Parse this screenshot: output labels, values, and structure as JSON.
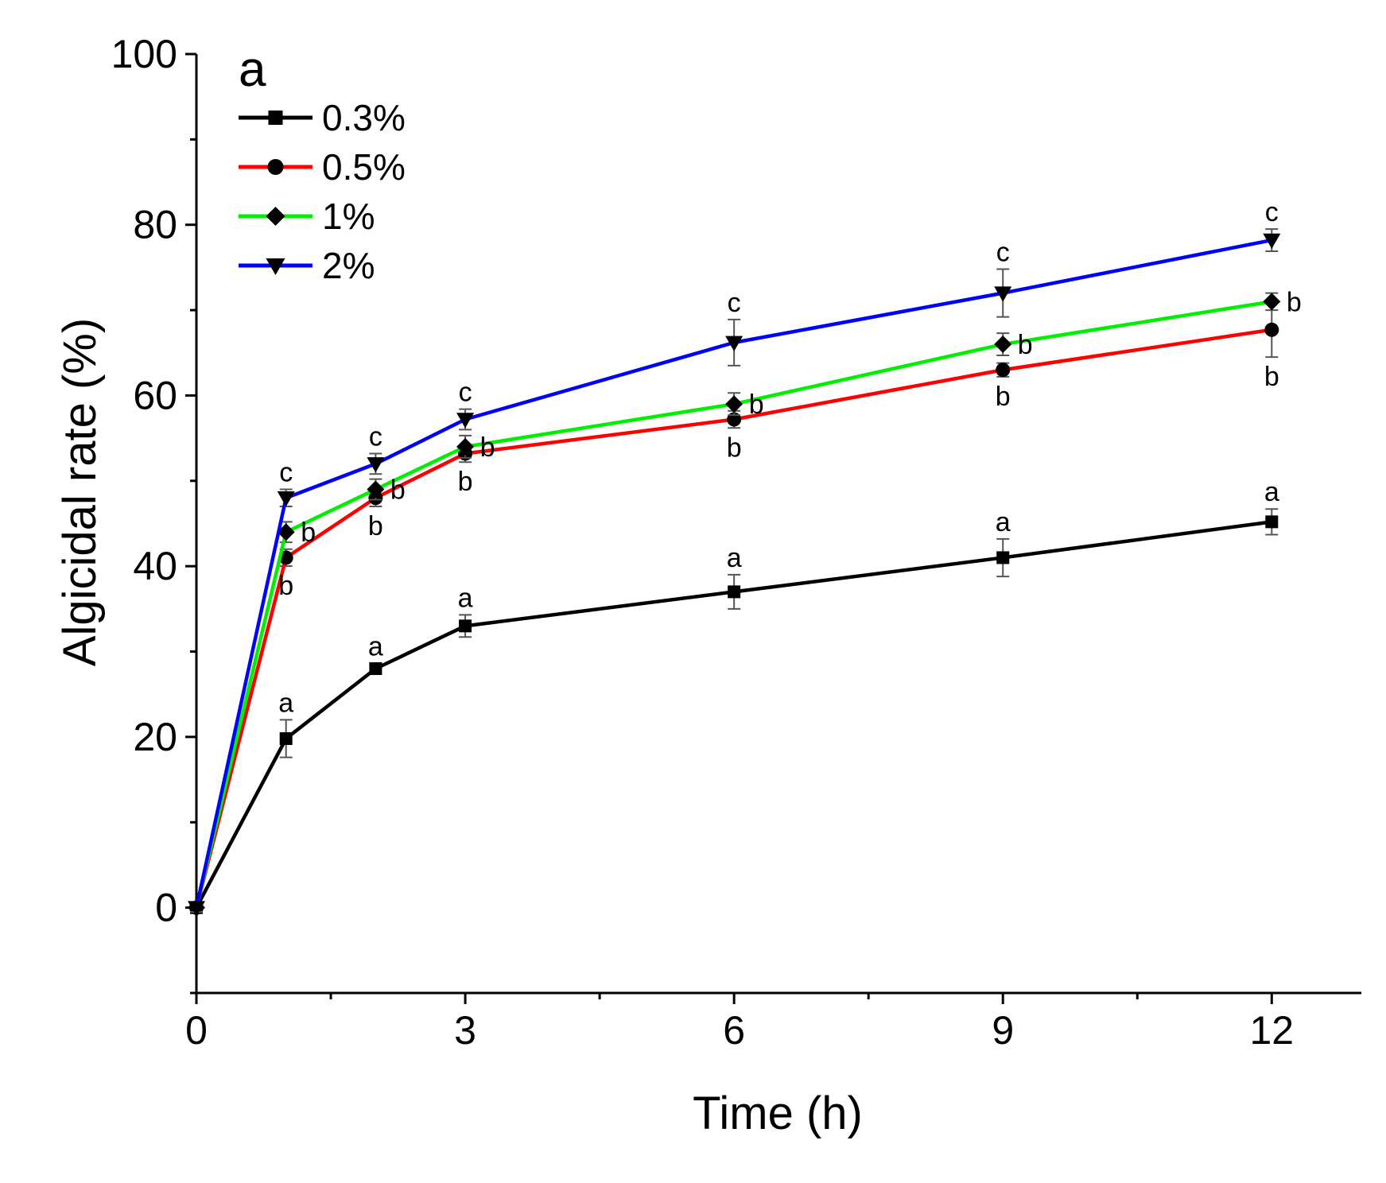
{
  "chart_data": {
    "type": "line",
    "panel_label": "a",
    "xlabel": "Time (h)",
    "ylabel": "Algicidal rate (%)",
    "xlim": [
      0,
      13
    ],
    "ylim": [
      -10,
      100
    ],
    "x_ticks": [
      0,
      3,
      6,
      9,
      12
    ],
    "x_minor_ticks": [
      1.5,
      4.5,
      7.5,
      10.5
    ],
    "y_ticks": [
      0,
      20,
      40,
      60,
      80,
      100
    ],
    "y_minor_ticks": [
      -10,
      10,
      30,
      50,
      70,
      90
    ],
    "legend_position": "top-left",
    "x": [
      0,
      1,
      2,
      3,
      6,
      9,
      12
    ],
    "series": [
      {
        "name": "0.3%",
        "color": "#000000",
        "marker": "square",
        "values": [
          0,
          19.8,
          28,
          33,
          37,
          41,
          45.2
        ],
        "errors": [
          0.5,
          2.2,
          0.6,
          1.3,
          2,
          2.2,
          1.5
        ],
        "sig": [
          "",
          "a",
          "a",
          "a",
          "a",
          "a",
          "a"
        ]
      },
      {
        "name": "0.5%",
        "color": "#ff0000",
        "marker": "circle",
        "values": [
          0,
          41,
          48,
          53.2,
          57.2,
          63,
          67.7
        ],
        "errors": [
          0.5,
          1,
          1,
          1,
          1,
          0.8,
          3.2
        ],
        "sig": [
          "",
          "b",
          "b",
          "b",
          "b",
          "b",
          "b"
        ]
      },
      {
        "name": "1%",
        "color": "#00ee00",
        "marker": "diamond",
        "values": [
          0,
          44,
          49,
          54,
          59,
          66,
          71
        ],
        "errors": [
          0.5,
          1.2,
          1.2,
          1.3,
          1.3,
          1.3,
          1
        ],
        "sig": [
          "",
          "b",
          "b",
          "b",
          "b",
          "b",
          "b"
        ]
      },
      {
        "name": "2%",
        "color": "#0000ff",
        "marker": "triangle-down",
        "values": [
          0,
          48,
          52,
          57.2,
          66.2,
          72,
          78.2
        ],
        "errors": [
          0.5,
          1,
          1.2,
          1.2,
          2.7,
          2.8,
          1.3
        ],
        "sig": [
          "",
          "c",
          "c",
          "c",
          "c",
          "c",
          "c"
        ]
      }
    ]
  }
}
